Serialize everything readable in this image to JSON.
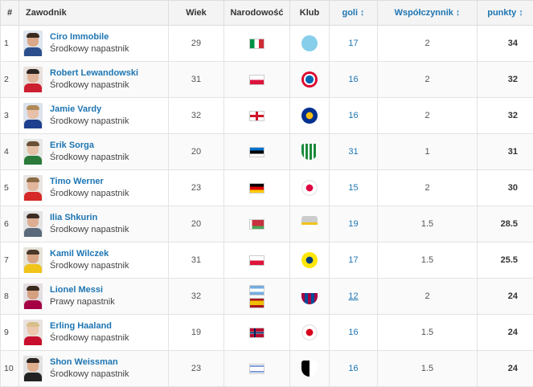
{
  "headers": {
    "rank": "#",
    "player": "Zawodnik",
    "age": "Wiek",
    "nationality": "Narodowość",
    "club": "Klub",
    "goals": "goli",
    "coefficient": "Współczynnik",
    "points": "punkty",
    "sort_glyph": "↕"
  },
  "rows": [
    {
      "rank": "1",
      "name": "Ciro Immobile",
      "position": "Środkowy napastnik",
      "age": "29",
      "nationality_icon": "flag-italy-icon",
      "club_icon": "lazio-crest-icon",
      "goals": "17",
      "coefficient": "2",
      "points": "34"
    },
    {
      "rank": "2",
      "name": "Robert Lewandowski",
      "position": "Środkowy napastnik",
      "age": "31",
      "nationality_icon": "flag-poland-icon",
      "club_icon": "bayern-crest-icon",
      "goals": "16",
      "coefficient": "2",
      "points": "32"
    },
    {
      "rank": "3",
      "name": "Jamie Vardy",
      "position": "Środkowy napastnik",
      "age": "32",
      "nationality_icon": "flag-england-icon",
      "club_icon": "leicester-crest-icon",
      "goals": "16",
      "coefficient": "2",
      "points": "32"
    },
    {
      "rank": "4",
      "name": "Erik Sorga",
      "position": "Środkowy napastnik",
      "age": "20",
      "nationality_icon": "flag-estonia-icon",
      "club_icon": "flora-crest-icon",
      "goals": "31",
      "coefficient": "1",
      "points": "31"
    },
    {
      "rank": "5",
      "name": "Timo Werner",
      "position": "Środkowy napastnik",
      "age": "23",
      "nationality_icon": "flag-germany-icon",
      "club_icon": "leipzig-crest-icon",
      "goals": "15",
      "coefficient": "2",
      "points": "30"
    },
    {
      "rank": "6",
      "name": "Ilia Shkurin",
      "position": "Środkowy napastnik",
      "age": "20",
      "nationality_icon": "flag-belarus-icon",
      "club_icon": "club-crest-icon",
      "goals": "19",
      "coefficient": "1.5",
      "points": "28.5"
    },
    {
      "rank": "7",
      "name": "Kamil Wilczek",
      "position": "Środkowy napastnik",
      "age": "31",
      "nationality_icon": "flag-poland-icon",
      "club_icon": "brondby-crest-icon",
      "goals": "17",
      "coefficient": "1.5",
      "points": "25.5"
    },
    {
      "rank": "8",
      "name": "Lionel Messi",
      "position": "Prawy napastnik",
      "age": "32",
      "nationality_icon": "flag-argentina-icon",
      "nationality_icon_2": "flag-spain-icon",
      "club_icon": "barcelona-crest-icon",
      "goals": "12",
      "goals_underlined": true,
      "coefficient": "2",
      "points": "24"
    },
    {
      "rank": "9",
      "name": "Erling Haaland",
      "position": "Środkowy napastnik",
      "age": "19",
      "nationality_icon": "flag-norway-icon",
      "club_icon": "salzburg-crest-icon",
      "goals": "16",
      "coefficient": "1.5",
      "points": "24"
    },
    {
      "rank": "10",
      "name": "Shon Weissman",
      "position": "Środkowy napastnik",
      "age": "23",
      "nationality_icon": "flag-israel-icon",
      "club_icon": "wolfsberg-crest-icon",
      "goals": "16",
      "coefficient": "1.5",
      "points": "24"
    }
  ],
  "colors": {
    "link": "#1d75b3",
    "header_bg": "#f4f4f4",
    "border": "#e3e3e3"
  }
}
